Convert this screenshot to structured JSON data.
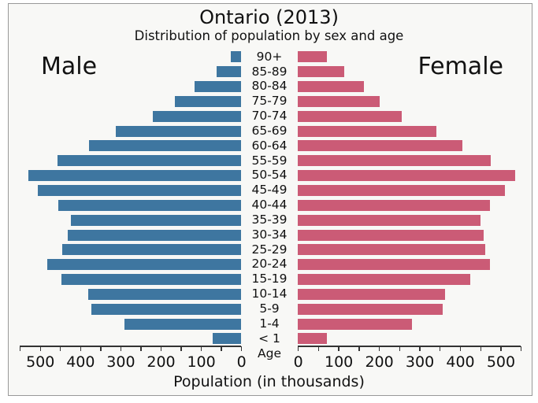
{
  "header": {
    "title": "Ontario (2013)",
    "subtitle": "Distribution of population by sex and age"
  },
  "labels": {
    "male": "Male",
    "female": "Female",
    "age_axis": "Age",
    "xlabel": "Population (in thousands)"
  },
  "colors": {
    "male_bar": "#3e76a0",
    "female_bar": "#cb5b76",
    "background": "#f8f8f6",
    "frame_border": "#999999",
    "axis": "#333333",
    "text": "#111111"
  },
  "chart_data": {
    "type": "bar",
    "orientation": "horizontal-pyramid",
    "title": "Ontario (2013)",
    "subtitle": "Distribution of population by sex and age",
    "xlabel": "Population (in thousands)",
    "age_axis_label": "Age",
    "categories": [
      "90+",
      "85-89",
      "80-84",
      "75-79",
      "70-74",
      "65-69",
      "60-64",
      "55-59",
      "50-54",
      "45-49",
      "40-44",
      "35-39",
      "30-34",
      "25-29",
      "20-24",
      "15-19",
      "10-14",
      "5-9",
      "1-4",
      "< 1"
    ],
    "series": [
      {
        "name": "Male",
        "side": "left",
        "color": "#3e76a0",
        "values": [
          25,
          60,
          116,
          165,
          220,
          311,
          377,
          457,
          529,
          505,
          455,
          423,
          431,
          445,
          481,
          447,
          379,
          371,
          290,
          71
        ]
      },
      {
        "name": "Female",
        "side": "right",
        "color": "#cb5b76",
        "values": [
          71,
          115,
          163,
          202,
          256,
          342,
          407,
          476,
          537,
          512,
          474,
          451,
          458,
          463,
          475,
          426,
          363,
          357,
          282,
          71
        ]
      }
    ],
    "xlim": [
      0,
      550
    ],
    "tick_step": 50,
    "tick_label_step": 100,
    "tick_labels_left": [
      "500",
      "400",
      "300",
      "200",
      "100",
      "0"
    ],
    "tick_labels_right": [
      "0",
      "100",
      "200",
      "300",
      "400",
      "500"
    ],
    "grid": false,
    "legend_position": "none"
  }
}
